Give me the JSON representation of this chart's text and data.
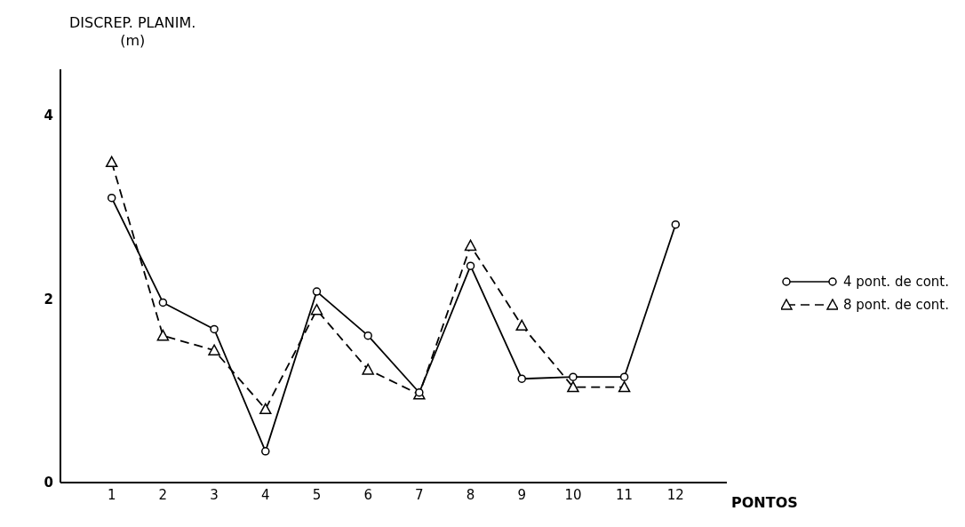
{
  "chart_data": {
    "type": "line",
    "ylabel": "DISCREP. PLANIM.\n(m)",
    "xlabel": "PONTOS",
    "x": [
      1,
      2,
      3,
      4,
      5,
      6,
      7,
      8,
      9,
      10,
      11,
      12
    ],
    "xlim": [
      0,
      13
    ],
    "xticks": [
      1,
      2,
      3,
      4,
      5,
      6,
      7,
      8,
      9,
      10,
      11,
      12
    ],
    "ylim": [
      0,
      4.5
    ],
    "yticks": [
      0,
      2,
      4
    ],
    "grid": false,
    "legend": "right",
    "series": [
      {
        "name": "4 pont. de cont.",
        "color": "#000000",
        "marker": "circle",
        "line_style": "solid",
        "values": [
          3.1,
          1.96,
          1.67,
          0.34,
          2.08,
          1.6,
          0.98,
          2.36,
          1.13,
          1.15,
          1.15,
          2.81
        ]
      },
      {
        "name": "8 pont. de cont.",
        "color": "#000000",
        "marker": "triangle",
        "line_style": "dashed",
        "values": [
          3.49,
          1.6,
          1.44,
          0.8,
          1.88,
          1.23,
          0.96,
          2.58,
          1.71,
          1.04,
          1.04,
          null
        ]
      }
    ]
  }
}
